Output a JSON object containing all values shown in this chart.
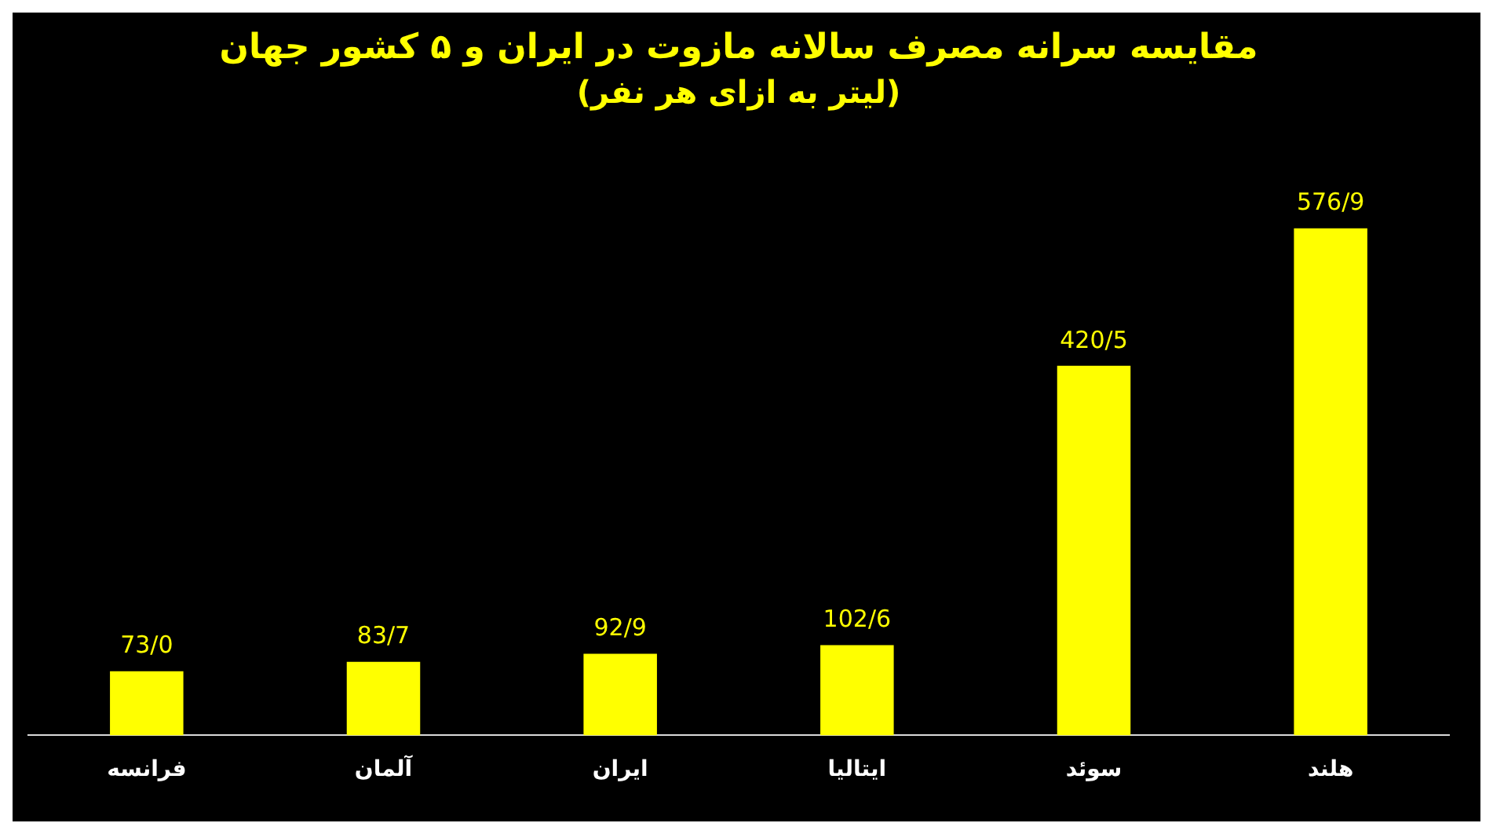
{
  "chart_data": {
    "type": "bar",
    "title": "مقایسه سرانه مصرف سالانه مازوت در ایران و ۵ کشور جهان",
    "subtitle": "(لیتر به ازای هر نفر)",
    "categories": [
      "فرانسه",
      "آلمان",
      "ایران",
      "ایتالیا",
      "سوئد",
      "هلند"
    ],
    "values": [
      73.0,
      83.7,
      92.9,
      102.6,
      420.5,
      576.9
    ],
    "value_labels": [
      "73/0",
      "83/7",
      "92/9",
      "102/6",
      "420/5",
      "576/9"
    ],
    "color": "#ffff00",
    "legend": false
  }
}
